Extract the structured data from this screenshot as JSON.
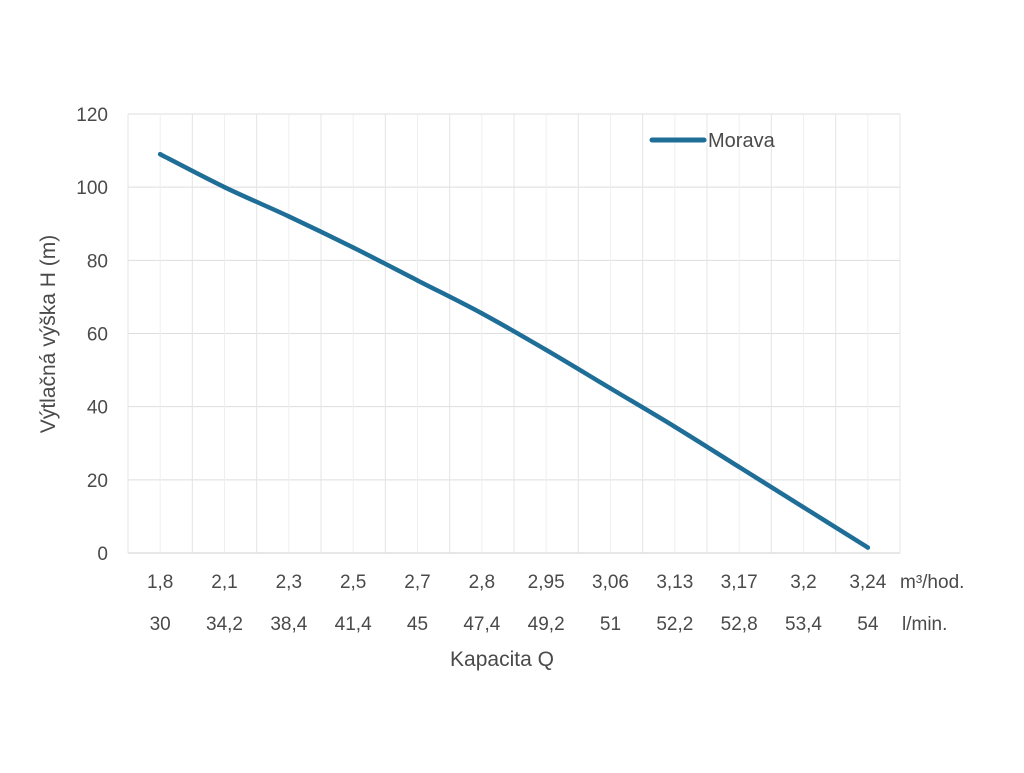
{
  "chart_data": {
    "type": "line",
    "title": "",
    "xlabel": "Kapacita Q",
    "ylabel": "Výtlačná výška H (m)",
    "ylim": [
      0,
      120
    ],
    "yticks": [
      0,
      20,
      40,
      60,
      80,
      100,
      120
    ],
    "categories": [
      "1,8",
      "2,1",
      "2,3",
      "2,5",
      "2,7",
      "2,8",
      "2,95",
      "3,06",
      "3,13",
      "3,17",
      "3,2",
      "3,24"
    ],
    "categories_secondary": [
      "30",
      "34,2",
      "38,4",
      "41,4",
      "45",
      "47,4",
      "49,2",
      "51",
      "52,2",
      "52,8",
      "53,4",
      "54"
    ],
    "x_units": [
      "m³/hod.",
      "l/min."
    ],
    "series": [
      {
        "name": "Morava",
        "color": "#1f6e97",
        "values": [
          109,
          100,
          92,
          83.5,
          74.5,
          65.5,
          55.5,
          45,
          34.5,
          23.5,
          12.5,
          1.5
        ]
      }
    ],
    "legend_position": "top-right",
    "grid": true
  }
}
